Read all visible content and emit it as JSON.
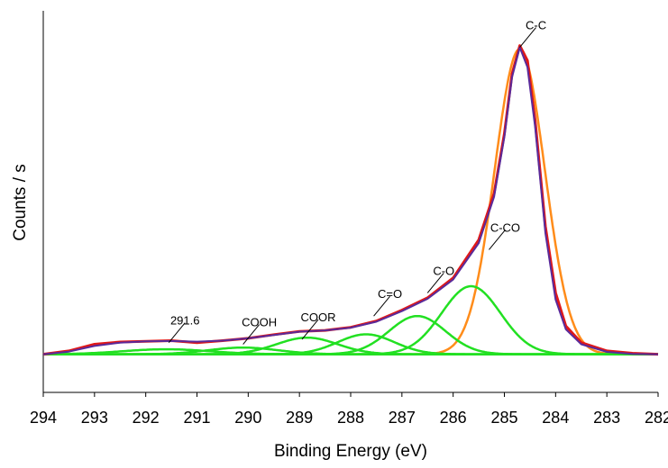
{
  "chart_data": {
    "type": "line",
    "title": "",
    "xlabel": "Binding Energy (eV)",
    "ylabel": "Counts / s",
    "x_reversed": true,
    "xlim": [
      294,
      282
    ],
    "ylim": [
      -0.1,
      1.05
    ],
    "x_ticks": [
      "294",
      "293",
      "292",
      "291",
      "290",
      "289",
      "288",
      "287",
      "286",
      "285",
      "284",
      "283",
      "282"
    ],
    "y_ticks_shown": false,
    "grid": false,
    "legend": "none",
    "baseline": 0.015,
    "components": [
      {
        "label": "C-C",
        "center": 284.7,
        "height": 0.92,
        "fwhm": 1.15,
        "color": "#ff8c1a"
      },
      {
        "label": "C-CO",
        "center": 285.65,
        "height": 0.205,
        "fwhm": 1.35,
        "color": "#22e022"
      },
      {
        "label": "C-O",
        "center": 286.7,
        "height": 0.115,
        "fwhm": 1.3,
        "color": "#22e022"
      },
      {
        "label": "C=O",
        "center": 287.7,
        "height": 0.06,
        "fwhm": 1.3,
        "color": "#22e022"
      },
      {
        "label": "COOR",
        "center": 288.85,
        "height": 0.05,
        "fwhm": 1.4,
        "color": "#22e022"
      },
      {
        "label": "COOH",
        "center": 290.1,
        "height": 0.02,
        "fwhm": 1.6,
        "color": "#22e022"
      },
      {
        "label": "291.6",
        "center": 291.6,
        "height": 0.015,
        "fwhm": 2.0,
        "color": "#22e022"
      }
    ],
    "series": [
      {
        "kind": "measured",
        "color": "#e01818",
        "x": [
          294,
          293.5,
          293,
          292.5,
          292,
          291.5,
          291,
          290.5,
          290,
          289.5,
          289,
          288.5,
          288,
          287.5,
          287,
          286.5,
          286,
          285.5,
          285.2,
          285,
          284.85,
          284.7,
          284.55,
          284.4,
          284.2,
          284,
          283.8,
          283.5,
          283,
          282.5,
          282
        ],
        "y": [
          0.015,
          0.025,
          0.045,
          0.052,
          0.054,
          0.056,
          0.05,
          0.056,
          0.063,
          0.074,
          0.084,
          0.087,
          0.096,
          0.115,
          0.148,
          0.185,
          0.245,
          0.36,
          0.5,
          0.68,
          0.86,
          0.945,
          0.9,
          0.72,
          0.4,
          0.2,
          0.1,
          0.05,
          0.025,
          0.018,
          0.015
        ]
      },
      {
        "kind": "envelope",
        "color": "#5a2a9a",
        "x": [
          294,
          293.5,
          293,
          292.5,
          292,
          291.5,
          291,
          290.5,
          290,
          289.5,
          289,
          288.5,
          288,
          287.5,
          287,
          286.5,
          286,
          285.5,
          285.2,
          285,
          284.85,
          284.7,
          284.55,
          284.4,
          284.2,
          284,
          283.8,
          283.5,
          283,
          282.5,
          282
        ],
        "y": [
          0.015,
          0.023,
          0.04,
          0.05,
          0.054,
          0.055,
          0.053,
          0.056,
          0.063,
          0.073,
          0.083,
          0.087,
          0.095,
          0.113,
          0.145,
          0.182,
          0.24,
          0.35,
          0.49,
          0.67,
          0.85,
          0.94,
          0.88,
          0.7,
          0.38,
          0.18,
          0.09,
          0.045,
          0.022,
          0.016,
          0.015
        ]
      }
    ],
    "annotations": [
      {
        "text": "C-C",
        "x": 284.7,
        "y": 0.94
      },
      {
        "text": "C-CO",
        "x": 285.3,
        "y": 0.33
      },
      {
        "text": "C-O",
        "x": 286.5,
        "y": 0.2
      },
      {
        "text": "C=O",
        "x": 287.55,
        "y": 0.13
      },
      {
        "text": "COOR",
        "x": 288.95,
        "y": 0.06
      },
      {
        "text": "COOH",
        "x": 290.1,
        "y": 0.045
      },
      {
        "text": "291.6",
        "x": 291.55,
        "y": 0.05
      }
    ]
  }
}
